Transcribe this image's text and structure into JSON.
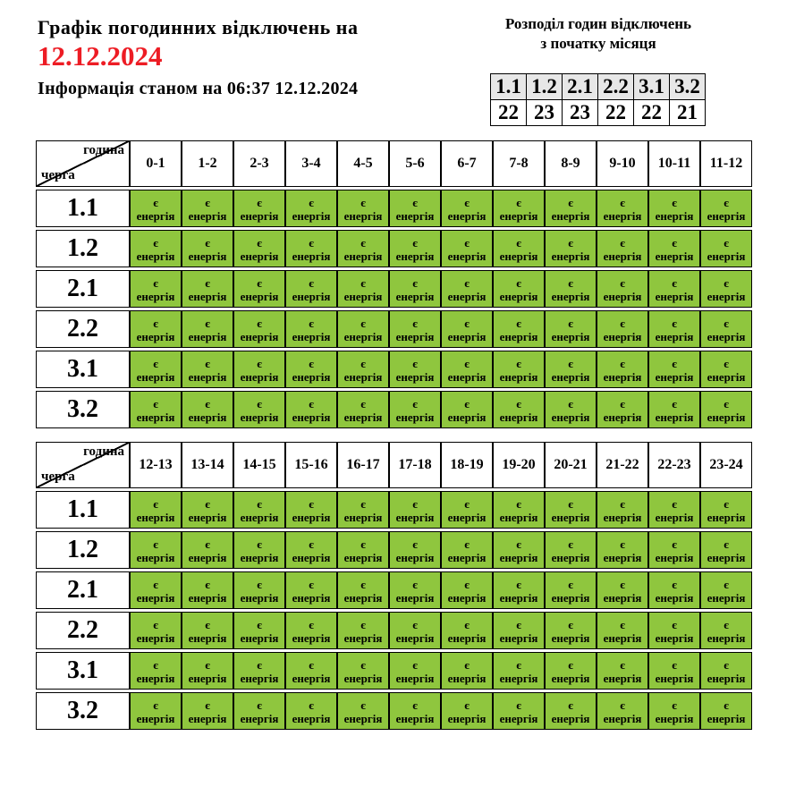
{
  "header": {
    "title": "Графік погодинних відключень на",
    "date": "12.12.2024",
    "info": "Інформація станом на 06:37 12.12.2024"
  },
  "distribution": {
    "title_line1": "Розподіл годин відключень",
    "title_line2": "з початку місяця",
    "columns": [
      "1.1",
      "1.2",
      "2.1",
      "2.2",
      "3.1",
      "3.2"
    ],
    "values": [
      "22",
      "23",
      "23",
      "22",
      "22",
      "21"
    ]
  },
  "schedule": {
    "corner_top": "година",
    "corner_bottom": "черга",
    "queues": [
      "1.1",
      "1.2",
      "2.1",
      "2.2",
      "3.1",
      "3.2"
    ],
    "cell_state": {
      "line1": "є",
      "line2": "енергія"
    },
    "tables": [
      {
        "hours": [
          "0-1",
          "1-2",
          "2-3",
          "3-4",
          "4-5",
          "5-6",
          "6-7",
          "7-8",
          "8-9",
          "9-10",
          "10-11",
          "11-12"
        ]
      },
      {
        "hours": [
          "12-13",
          "13-14",
          "14-15",
          "15-16",
          "16-17",
          "17-18",
          "18-19",
          "19-20",
          "20-21",
          "21-22",
          "22-23",
          "23-24"
        ]
      }
    ]
  },
  "colors": {
    "energy_on": "#8fc63e",
    "date_red": "#ed1c24",
    "table_header_bg": "#e7e7e7"
  }
}
